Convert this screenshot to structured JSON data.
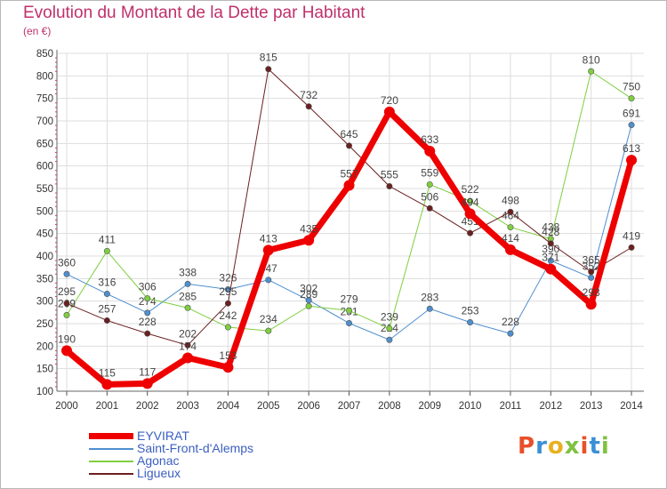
{
  "header": {
    "title": "Evolution du Montant de la Dette par Habitant",
    "unit": "(en €)"
  },
  "logo": {
    "text": "Proxiti",
    "colors": [
      "#e8502a",
      "#3a8fd6",
      "#e8b020",
      "#7fc241",
      "#e8502a",
      "#3a8fd6",
      "#7fc241"
    ]
  },
  "chart_data": {
    "type": "line",
    "title": "Evolution du Montant de la Dette par Habitant",
    "ylabel": "(en €)",
    "xlabel": "",
    "ylim": [
      100,
      850
    ],
    "ytick_step": 50,
    "grid": true,
    "legend_position": "bottom-left",
    "categories": [
      "2000",
      "2001",
      "2002",
      "2003",
      "2004",
      "2005",
      "2006",
      "2007",
      "2008",
      "2009",
      "2010",
      "2011",
      "2012",
      "2013",
      "2014"
    ],
    "series": [
      {
        "name": "EYVIRAT",
        "color": "#ee0000",
        "width": 7,
        "values": [
          190,
          115,
          117,
          174,
          153,
          413,
          435,
          557,
          720,
          633,
          494,
          414,
          371,
          293,
          613
        ]
      },
      {
        "name": "Saint-Front-d'Alemps",
        "color": "#4f8fcf",
        "width": 1,
        "values": [
          360,
          316,
          274,
          338,
          326,
          347,
          302,
          251,
          214,
          283,
          253,
          228,
          390,
          352,
          691
        ]
      },
      {
        "name": "Agonac",
        "color": "#7fcf40",
        "width": 1,
        "values": [
          269,
          411,
          306,
          285,
          242,
          234,
          289,
          279,
          239,
          559,
          522,
          464,
          438,
          810,
          750
        ]
      },
      {
        "name": "Ligueux",
        "color": "#6b1f1f",
        "width": 1,
        "values": [
          295,
          257,
          228,
          202,
          295,
          815,
          732,
          645,
          555,
          506,
          451,
          498,
          428,
          365,
          419
        ]
      }
    ]
  }
}
